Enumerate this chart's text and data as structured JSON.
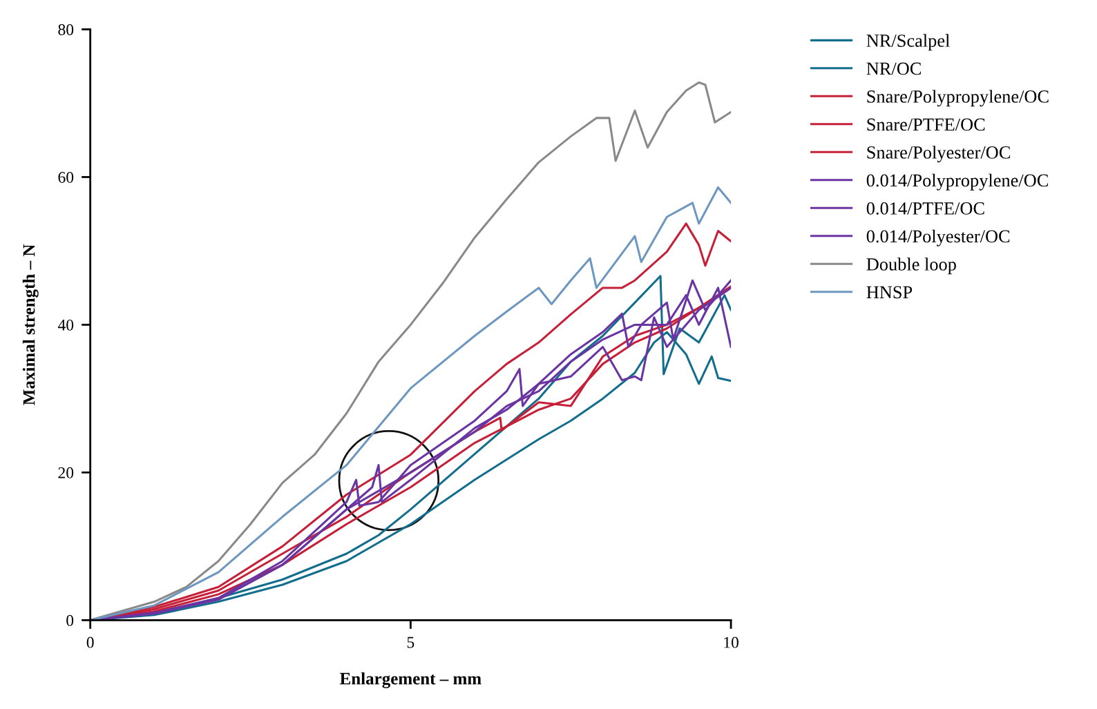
{
  "chart_data": {
    "type": "line",
    "xlabel": "Enlargement – mm",
    "ylabel": "Maximal strength – N",
    "xlim": [
      0,
      10
    ],
    "xticks": [
      0,
      5,
      10
    ],
    "ylim": [
      0,
      80
    ],
    "yticks": [
      0,
      20,
      40,
      60,
      80
    ],
    "grid": false,
    "legend": "right",
    "marker": "none",
    "line_style": "solid",
    "series": [
      {
        "name": "NR/Scalpel",
        "color": "#136d8c",
        "x": [
          0,
          1,
          2,
          3,
          4,
          4.5,
          5,
          6,
          7,
          7.5,
          8,
          8.5,
          8.8,
          9,
          9.3,
          9.5,
          9.7,
          9.8,
          10
        ],
        "values": [
          0,
          0.7,
          2.5,
          4.8,
          8,
          10.5,
          13,
          19,
          24.5,
          27,
          30,
          33.5,
          37.6,
          39,
          36,
          32,
          35.7,
          32.8,
          32.4
        ]
      },
      {
        "name": "NR/OC",
        "color": "#136d8c",
        "x": [
          0,
          1,
          2,
          3,
          4,
          4.5,
          5,
          6,
          7,
          7.5,
          8,
          8.5,
          8.9,
          8.95,
          9.2,
          9.5,
          9.9,
          10
        ],
        "values": [
          0,
          0.9,
          3,
          5.5,
          9,
          11.5,
          15,
          22.5,
          30,
          35,
          38.5,
          43,
          46.6,
          33.3,
          39.5,
          37.6,
          44,
          42
        ]
      },
      {
        "name": "Snare/Polypropylene/OC",
        "color": "#c52038",
        "x": [
          0,
          1,
          2,
          3,
          4,
          5,
          6,
          6.5,
          7,
          7.5,
          8,
          8.3,
          8.5,
          9,
          9.3,
          9.5,
          9.6,
          9.8,
          10
        ],
        "values": [
          0,
          1.8,
          4.5,
          10,
          17,
          22.4,
          31,
          34.7,
          37.6,
          41.4,
          45,
          45,
          46,
          49.9,
          53.7,
          50.8,
          48,
          52.7,
          51.3
        ]
      },
      {
        "name": "Snare/PTFE/OC",
        "color": "#c52038",
        "x": [
          0,
          1,
          2,
          3,
          4,
          5,
          6,
          6.4,
          6.42,
          7,
          7.5,
          8,
          8.5,
          9,
          9.5,
          10
        ],
        "values": [
          0,
          1.5,
          4,
          9,
          14,
          20,
          25.5,
          27.4,
          25.7,
          29.5,
          29,
          35.7,
          38.5,
          40,
          42.3,
          45
        ]
      },
      {
        "name": "Snare/Polyester/OC",
        "color": "#c52038",
        "x": [
          0,
          1,
          2,
          3,
          4,
          5,
          6,
          7,
          7.5,
          8,
          8.5,
          9,
          9.5,
          10
        ],
        "values": [
          0,
          1.2,
          3.5,
          7.5,
          13,
          18,
          24,
          28.5,
          30,
          34.7,
          37.6,
          39.5,
          42.3,
          45.2
        ]
      },
      {
        "name": "0.014/Polypropylene/OC",
        "color": "#6a34a2",
        "x": [
          0,
          1,
          2,
          3,
          4,
          4.15,
          4.2,
          4.5,
          5,
          6,
          6.5,
          6.7,
          6.75,
          7,
          7.5,
          8,
          8.3,
          8.4,
          8.6,
          9,
          9.1,
          9.4,
          9.6,
          10
        ],
        "values": [
          0,
          1,
          3,
          8,
          16,
          19,
          15.5,
          16,
          21,
          27,
          31,
          34,
          29,
          32,
          36,
          39,
          41.5,
          37,
          40,
          43,
          38,
          46,
          42,
          46
        ]
      },
      {
        "name": "0.014/PTFE/OC",
        "color": "#6a34a2",
        "x": [
          0,
          1,
          2,
          3,
          4,
          4.4,
          4.5,
          4.55,
          5,
          6,
          6.5,
          7,
          7.5,
          8,
          8.3,
          8.5,
          8.6,
          8.8,
          9,
          9.5,
          10
        ],
        "values": [
          0,
          0.9,
          2.8,
          7.5,
          15,
          18,
          21,
          16,
          19,
          26,
          28.5,
          32,
          33,
          37,
          32.5,
          33,
          32.5,
          41,
          37,
          42,
          45
        ]
      },
      {
        "name": "0.014/Polyester/OC",
        "color": "#6a34a2",
        "x": [
          0,
          1,
          2,
          3,
          4,
          5,
          6,
          6.5,
          7,
          7.5,
          8,
          8.5,
          9,
          9.3,
          9.5,
          9.8,
          10
        ],
        "values": [
          0,
          0.9,
          2.8,
          7.5,
          15,
          20,
          25.5,
          29,
          31,
          35,
          38,
          40,
          40,
          44,
          40,
          45,
          37
        ]
      },
      {
        "name": "Double loop",
        "color": "#898989",
        "x": [
          0,
          1,
          1.5,
          2,
          2.5,
          3,
          3.5,
          4,
          4.5,
          5,
          5.5,
          6,
          6.5,
          7,
          7.5,
          7.9,
          8.1,
          8.2,
          8.5,
          8.7,
          9,
          9.3,
          9.5,
          9.6,
          9.75,
          10
        ],
        "values": [
          0,
          2.5,
          4.5,
          8,
          13,
          18.6,
          22.4,
          28,
          35,
          40,
          45.6,
          51.8,
          57,
          62,
          65.5,
          68,
          68,
          62.2,
          69,
          64,
          68.8,
          71.7,
          72.8,
          72.5,
          67.4,
          68.8
        ]
      },
      {
        "name": "HNSP",
        "color": "#6e97c0",
        "x": [
          0,
          1,
          2,
          3,
          4,
          5,
          6,
          6.5,
          7,
          7.2,
          7.5,
          7.8,
          7.9,
          8.5,
          8.6,
          9,
          9.4,
          9.5,
          9.8,
          10
        ],
        "values": [
          0,
          2,
          6.5,
          14,
          21,
          31.4,
          38.5,
          41.8,
          45,
          42.8,
          46,
          49,
          45,
          52,
          48.5,
          54.6,
          56.5,
          53.7,
          58.6,
          56.5
        ]
      }
    ]
  }
}
